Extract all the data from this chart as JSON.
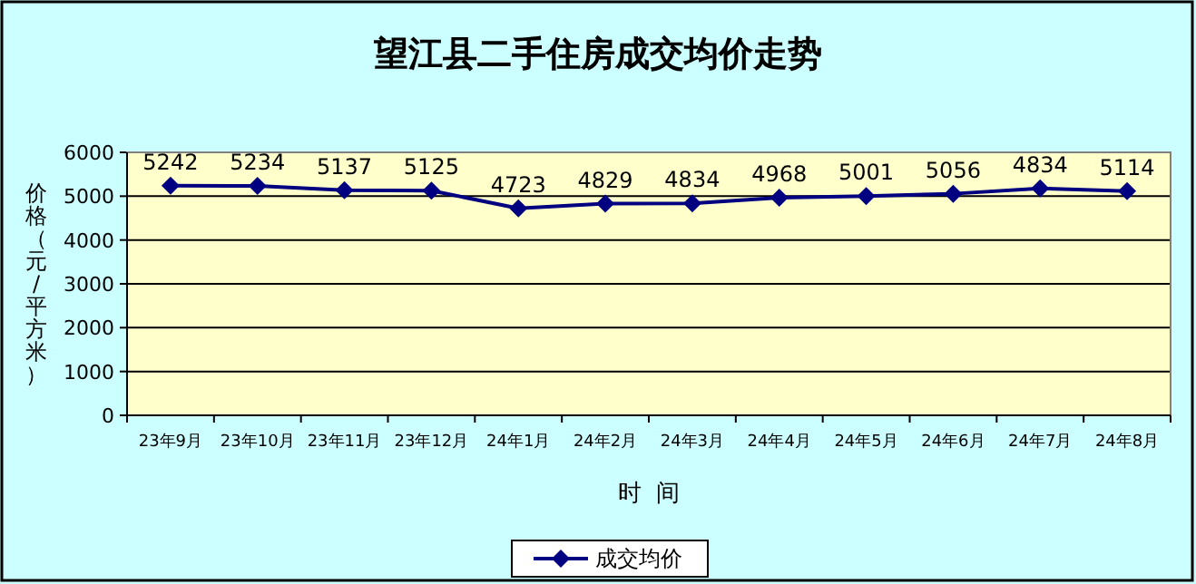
{
  "chart_data": {
    "type": "line",
    "title": "望江县二手住房成交均价走势",
    "xlabel": "时  间",
    "ylabel": "价格（元/平方米）",
    "categories": [
      "23年9月",
      "23年10月",
      "23年11月",
      "23年12月",
      "24年1月",
      "24年2月",
      "24年3月",
      "24年4月",
      "24年5月",
      "24年6月",
      "24年7月",
      "24年8月"
    ],
    "series": [
      {
        "name": "成交均价",
        "color": "#000080",
        "values": [
          5242,
          5234,
          5137,
          5125,
          4723,
          4829,
          4834,
          4968,
          5001,
          5056,
          5180,
          5114
        ],
        "value_labels": [
          "5242",
          "5234",
          "5137",
          "5125",
          "4723",
          "4829",
          "4834",
          "4968",
          "5001",
          "5056",
          null,
          "5114"
        ]
      }
    ],
    "annotations": [
      {
        "text": "4834",
        "x": "24年7月",
        "y": 5180
      }
    ],
    "ylim": [
      0,
      6000
    ],
    "yticks": [
      0,
      1000,
      2000,
      3000,
      4000,
      5000,
      6000
    ],
    "grid": "y",
    "legend": "bottom",
    "marker": "diamond",
    "line_style": "solid"
  }
}
